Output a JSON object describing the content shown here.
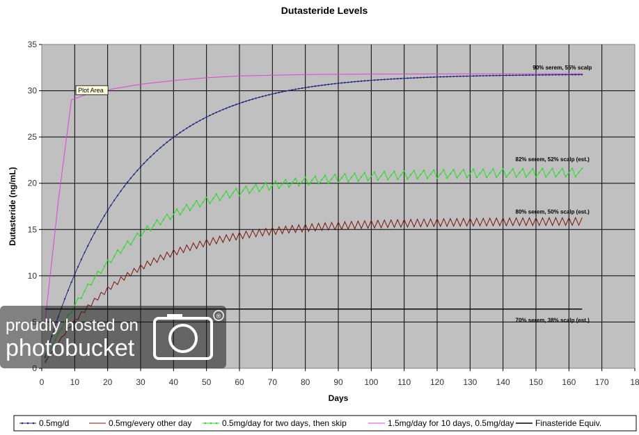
{
  "chart_data": {
    "type": "line",
    "title": "Dutasteride Levels",
    "xlabel": "Days",
    "ylabel": "Dutasteride (ng/mL)",
    "xlim": [
      0,
      180
    ],
    "ylim": [
      0,
      35
    ],
    "x_ticks": [
      "0",
      "10",
      "20",
      "30",
      "40",
      "50",
      "60",
      "70",
      "80",
      "90",
      "100",
      "110",
      "120",
      "130",
      "140",
      "150",
      "160",
      "170",
      "18"
    ],
    "y_ticks": [
      "0",
      "5",
      "10",
      "15",
      "20",
      "25",
      "30",
      "35"
    ],
    "grid": true,
    "legend_position": "bottom",
    "series": [
      {
        "name": "0.5mg/d",
        "color": "#1f1f7a",
        "marker": "dot",
        "regimen": "daily",
        "plateau": 31.8,
        "tau_days": 26,
        "end_day": 164
      },
      {
        "name": "0.5mg/every other day",
        "color": "#7a1010",
        "marker": "none",
        "regimen": "every-other-day",
        "plateau": 15.9,
        "tau_days": 26,
        "end_day": 164
      },
      {
        "name": "0.5mg/day for two days, then skip",
        "color": "#22dd22",
        "marker": "dot",
        "regimen": "two-on-one-off",
        "plateau": 21.2,
        "tau_days": 26,
        "end_day": 164
      },
      {
        "name": "1.5mg/day for 10 days, 0.5mg/day",
        "color": "#dd44dd",
        "marker": "none",
        "regimen": "loading",
        "plateau": 31.8,
        "points": [
          [
            1,
            5.0
          ],
          [
            5,
            18.0
          ],
          [
            9,
            29.0
          ],
          [
            15,
            29.8
          ],
          [
            20,
            30.1
          ],
          [
            30,
            30.7
          ],
          [
            40,
            31.1
          ],
          [
            50,
            31.4
          ],
          [
            60,
            31.6
          ],
          [
            80,
            31.75
          ],
          [
            100,
            31.8
          ],
          [
            164,
            31.85
          ]
        ]
      },
      {
        "name": "Finasteride Equiv.",
        "color": "#000000",
        "marker": "none",
        "regimen": "constant",
        "points": [
          [
            1,
            6.4
          ],
          [
            164,
            6.4
          ]
        ]
      }
    ],
    "annotations": [
      {
        "text": "90% serem, 55% scalp",
        "x": 158,
        "y": 32.3
      },
      {
        "text": "82% serem, 52% scalp (est.)",
        "x": 155,
        "y": 22.4
      },
      {
        "text": "80% serem, 50% scalp (est.)",
        "x": 155,
        "y": 16.7
      },
      {
        "text": "70% serem, 38% scalp (est.)",
        "x": 155,
        "y": 5.0
      }
    ],
    "tooltip": {
      "text": "Plot Area",
      "x": 11,
      "y": 29.8
    }
  },
  "watermark": {
    "line1": "proudly hosted on",
    "line2": "photobucket",
    "mark": "®"
  }
}
